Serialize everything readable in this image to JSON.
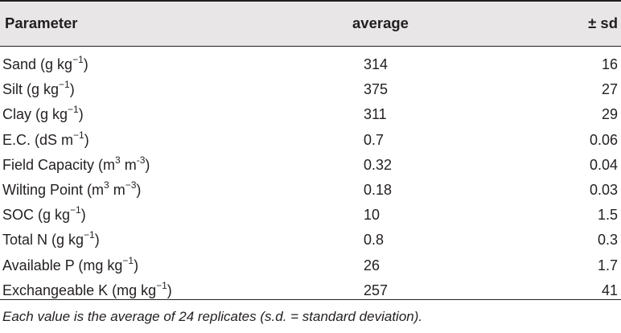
{
  "table": {
    "headers": {
      "parameter": "Parameter",
      "average": "average",
      "sd": "± sd"
    },
    "rows": [
      {
        "name": "Sand (g kg",
        "exp1": "−1",
        "mid": "",
        "exp2": "",
        "close": ")",
        "average": "314",
        "sd": "16"
      },
      {
        "name": "Silt (g kg",
        "exp1": "−1",
        "mid": "",
        "exp2": "",
        "close": ")",
        "average": "375",
        "sd": "27"
      },
      {
        "name": "Clay (g kg",
        "exp1": "−1",
        "mid": "",
        "exp2": "",
        "close": ")",
        "average": "311",
        "sd": "29"
      },
      {
        "name": "E.C. (dS m",
        "exp1": "−1",
        "mid": "",
        "exp2": "",
        "close": ")",
        "average": "0.7",
        "sd": "0.06"
      },
      {
        "name": "Field Capacity (m",
        "exp1": "3",
        "mid": " m",
        "exp2": "-3",
        "close": ")",
        "average": "0.32",
        "sd": "0.04"
      },
      {
        "name": "Wilting Point (m",
        "exp1": "3",
        "mid": " m",
        "exp2": "−3",
        "close": ")",
        "average": "0.18",
        "sd": "0.03"
      },
      {
        "name": "SOC (g kg",
        "exp1": "−1",
        "mid": "",
        "exp2": "",
        "close": ")",
        "average": "10",
        "sd": "1.5"
      },
      {
        "name": "Total N (g kg",
        "exp1": "−1",
        "mid": "",
        "exp2": "",
        "close": ")",
        "average": "0.8",
        "sd": "0.3"
      },
      {
        "name": "Available P (mg kg",
        "exp1": "−1",
        "mid": "",
        "exp2": "",
        "close": ")",
        "average": "26",
        "sd": "1.7"
      },
      {
        "name": "Exchangeable K (mg kg",
        "exp1": "−1",
        "mid": "",
        "exp2": "",
        "close": ")",
        "average": "257",
        "sd": "41"
      }
    ]
  },
  "footnote": "Each value is the average of 24 replicates (s.d. = standard deviation)."
}
